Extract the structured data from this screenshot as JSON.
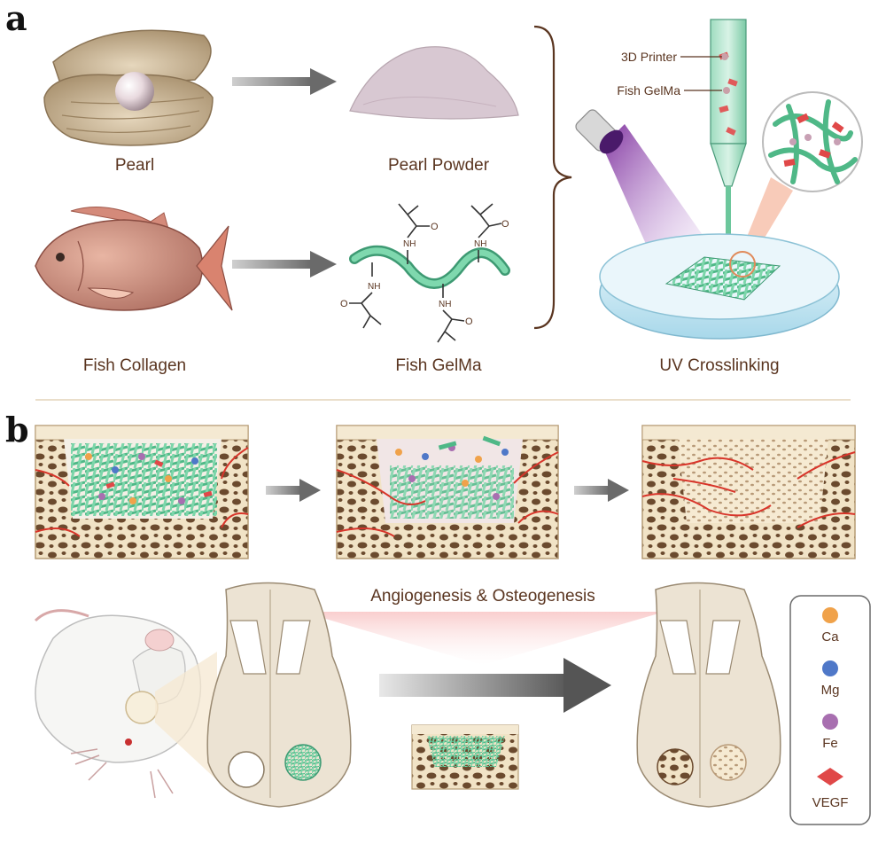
{
  "panels": {
    "a": {
      "letter": "a",
      "labels": {
        "pearl": "Pearl",
        "pearl_powder": "Pearl Powder",
        "fish_collagen": "Fish Collagen",
        "fish_gelma": "Fish GelMa",
        "uv_crosslinking": "UV Crosslinking",
        "printer": "3D Printer",
        "printer_ink": "Fish GelMa"
      },
      "chem": {
        "nh": "NH",
        "o": "O"
      }
    },
    "b": {
      "letter": "b",
      "process_label": "Angiogenesis & Osteogenesis",
      "legend": [
        {
          "label": "Ca",
          "color": "#f0a24a"
        },
        {
          "label": "Mg",
          "color": "#4f78c8"
        },
        {
          "label": "Fe",
          "color": "#a86fb0"
        },
        {
          "label": "VEGF",
          "color": "#e04848"
        }
      ]
    }
  },
  "colors": {
    "text": "#5a3520",
    "scaffold": "#5fc79a",
    "bone": "#f1e3c6",
    "vessel": "#d8352a",
    "arrow": "#6e6e6e"
  }
}
